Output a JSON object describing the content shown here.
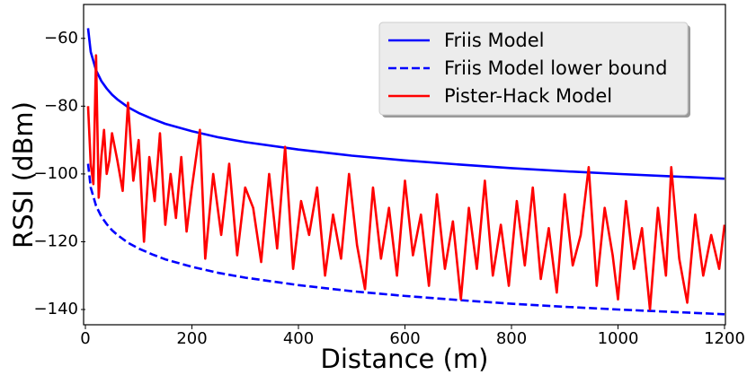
{
  "chart_data": {
    "type": "line",
    "xlabel": "Distance (m)",
    "ylabel": "RSSI (dBm)",
    "xlim": [
      0,
      1200
    ],
    "ylim": [
      -144.5,
      -50
    ],
    "xticks": [
      0,
      200,
      400,
      600,
      800,
      1000,
      1200
    ],
    "yticks": [
      {
        "value": -60,
        "label": "−60"
      },
      {
        "value": -80,
        "label": "−80"
      },
      {
        "value": -100,
        "label": "−100"
      },
      {
        "value": -120,
        "label": "−120"
      },
      {
        "value": -140,
        "label": "−140"
      }
    ],
    "legend": "upper right",
    "series": [
      {
        "name": "Friis Model",
        "color": "#0000ff",
        "dash": "solid",
        "x": [
          5,
          10,
          20,
          30,
          40,
          50,
          60,
          80,
          100,
          125,
          150,
          200,
          250,
          300,
          400,
          500,
          600,
          700,
          800,
          900,
          1000,
          1100,
          1200
        ],
        "values": [
          -57,
          -64.0,
          -69.4,
          -72.6,
          -74.8,
          -76.6,
          -78.0,
          -80.3,
          -82.0,
          -83.7,
          -85.2,
          -87.4,
          -89.2,
          -90.6,
          -92.8,
          -94.6,
          -96.0,
          -97.2,
          -98.3,
          -99.2,
          -100.0,
          -100.7,
          -101.4
        ]
      },
      {
        "name": "Friis Model lower bound",
        "color": "#0000ff",
        "dash": "dashed",
        "x": [
          5,
          10,
          20,
          30,
          40,
          50,
          60,
          80,
          100,
          125,
          150,
          200,
          250,
          300,
          400,
          500,
          600,
          700,
          800,
          900,
          1000,
          1100,
          1200
        ],
        "values": [
          -97,
          -104.0,
          -109.4,
          -112.6,
          -114.8,
          -116.6,
          -118.0,
          -120.3,
          -122.0,
          -123.7,
          -125.2,
          -127.4,
          -129.2,
          -130.6,
          -132.8,
          -134.6,
          -136.0,
          -137.2,
          -138.3,
          -139.2,
          -140.0,
          -140.7,
          -141.4
        ]
      },
      {
        "name": "Pister-Hack Model",
        "color": "#ff0000",
        "dash": "solid",
        "x": [
          5,
          10,
          15,
          20,
          25,
          30,
          35,
          40,
          45,
          50,
          60,
          70,
          80,
          90,
          100,
          110,
          120,
          130,
          140,
          150,
          160,
          170,
          180,
          190,
          200,
          215,
          225,
          240,
          255,
          270,
          285,
          300,
          315,
          330,
          345,
          360,
          375,
          390,
          405,
          420,
          435,
          450,
          465,
          480,
          495,
          510,
          525,
          540,
          555,
          570,
          585,
          600,
          615,
          630,
          645,
          660,
          675,
          690,
          705,
          720,
          735,
          750,
          765,
          780,
          795,
          810,
          825,
          840,
          855,
          870,
          885,
          900,
          915,
          930,
          945,
          960,
          975,
          990,
          1000,
          1015,
          1030,
          1045,
          1060,
          1075,
          1090,
          1100,
          1115,
          1130,
          1145,
          1160,
          1175,
          1190,
          1200
        ],
        "values": [
          -80,
          -97,
          -103,
          -65,
          -107,
          -95,
          -87,
          -100,
          -96,
          -88,
          -96,
          -105,
          -79,
          -102,
          -90,
          -120,
          -95,
          -108,
          -88,
          -115,
          -100,
          -113,
          -95,
          -117,
          -104,
          -87,
          -125,
          -100,
          -118,
          -97,
          -124,
          -104,
          -110,
          -126,
          -100,
          -122,
          -92,
          -128,
          -108,
          -118,
          -104,
          -130,
          -112,
          -125,
          -100,
          -121,
          -134,
          -104,
          -125,
          -110,
          -130,
          -102,
          -124,
          -112,
          -133,
          -106,
          -128,
          -114,
          -137,
          -110,
          -128,
          -102,
          -130,
          -115,
          -133,
          -108,
          -127,
          -104,
          -131,
          -116,
          -135,
          -106,
          -127,
          -118,
          -98,
          -133,
          -110,
          -124,
          -137,
          -108,
          -128,
          -116,
          -140,
          -110,
          -130,
          -98,
          -125,
          -138,
          -112,
          -130,
          -118,
          -128,
          -115
        ]
      }
    ]
  }
}
